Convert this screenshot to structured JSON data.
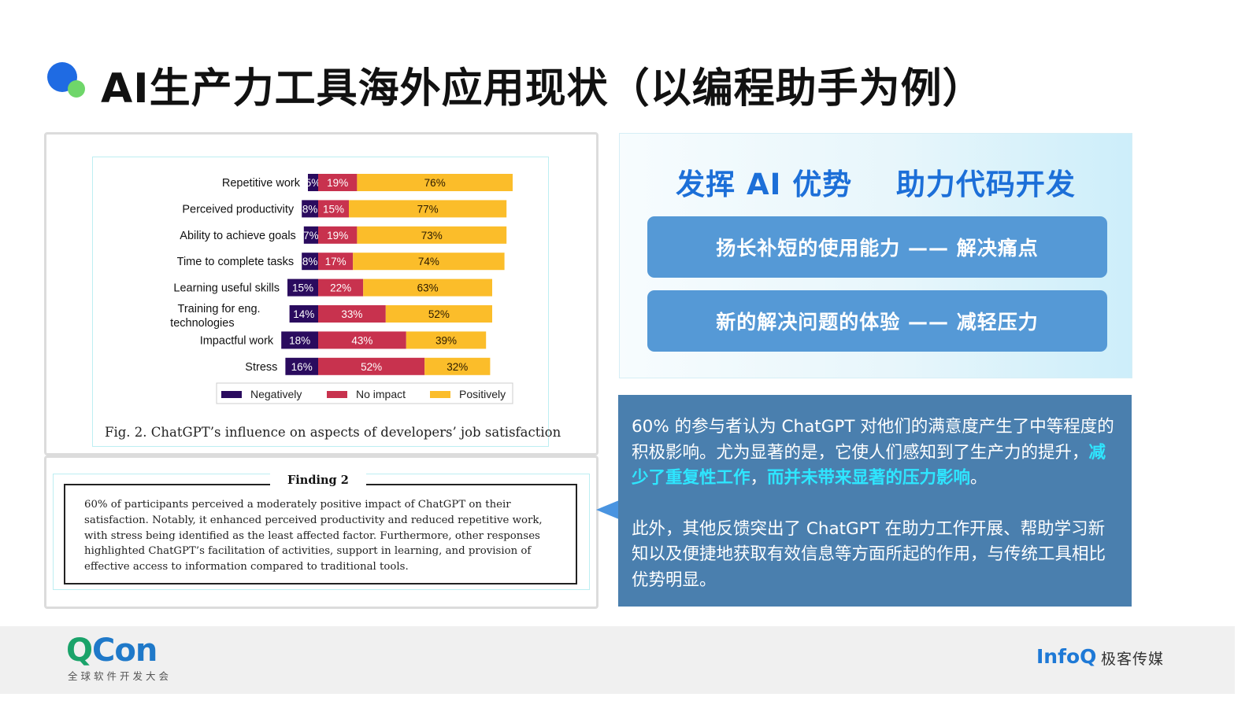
{
  "page": {
    "title": "AI生产力工具海外应用现状（以编程助手为例）"
  },
  "chart_data": {
    "type": "bar",
    "stacked": true,
    "orientation": "horizontal",
    "categories": [
      "Repetitive work",
      "Perceived productivity",
      "Ability to achieve goals",
      "Time to complete tasks",
      "Learning useful skills",
      "Training for eng. technologies",
      "Impactful work",
      "Stress"
    ],
    "series": [
      {
        "name": "Negatively",
        "color": "#2a0b5e",
        "values": [
          5,
          8,
          7,
          8,
          15,
          14,
          18,
          16
        ]
      },
      {
        "name": "No impact",
        "color": "#c8324e",
        "values": [
          19,
          15,
          19,
          17,
          22,
          33,
          43,
          52
        ]
      },
      {
        "name": "Positively",
        "color": "#fbbd2a",
        "values": [
          76,
          77,
          73,
          74,
          63,
          52,
          39,
          32
        ]
      }
    ],
    "value_suffix": "%",
    "legend_position": "bottom",
    "caption": "Fig. 2.  ChatGPT’s influence on aspects of developers’ job satisfaction"
  },
  "finding": {
    "title": "Finding 2",
    "text": "60% of participants perceived a moderately positive impact of ChatGPT on their satisfaction. Notably, it enhanced perceived productivity and reduced repetitive work, with stress being identified as the least affected factor. Furthermore, other responses highlighted ChatGPT’s facilitation of activities, support in learning, and provision of effective access to information compared to traditional tools."
  },
  "advantage": {
    "heading": "发挥 AI 优势    助力代码开发",
    "pill_1": "扬长补短的使用能力 —— 解决痛点",
    "pill_2": "新的解决问题的体验 —— 减轻压力"
  },
  "summary": {
    "p1_a": "60% 的参与者认为 ChatGPT 对他们的满意度产生了中等程度的积极影响。尤为显著的是，它使人们感知到了生产力的提升，",
    "p1_hl_1": "减少了重复性工作",
    "p1_b": "，",
    "p1_hl_2": "而并未带来显著的压力影响",
    "p1_c": "。",
    "p2": "此外，其他反馈突出了 ChatGPT 在助力工作开展、帮助学习新知以及便捷地获取有效信息等方面所起的作用，与传统工具相比优势明显。"
  },
  "footer": {
    "qcon_q": "Q",
    "qcon_con": "Con",
    "qcon_sub": "全球软件开发大会",
    "infoq": "InfoQ",
    "brand": "极客传媒"
  },
  "colors": {
    "accent": "#1c6fd8",
    "pill": "#5599d6",
    "note_bg": "#4a7fae",
    "highlight": "#2ee6ff"
  }
}
